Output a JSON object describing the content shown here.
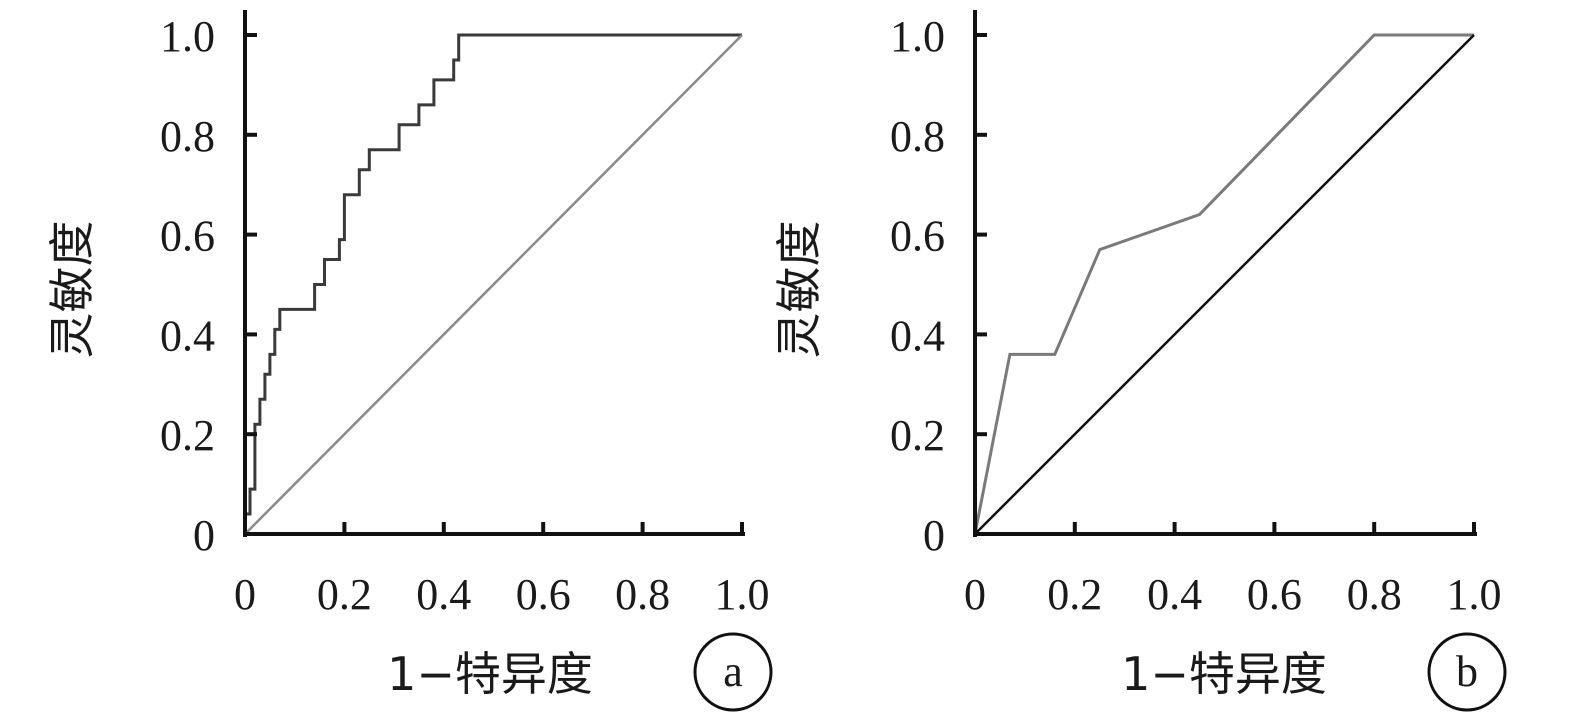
{
  "chart_data": [
    {
      "type": "line",
      "panel_label": "a",
      "xlabel": "1−特异度",
      "ylabel": "灵敏度",
      "xlim": [
        0,
        1
      ],
      "ylim": [
        0,
        1
      ],
      "x_ticks": [
        "0",
        "0.2",
        "0.4",
        "0.6",
        "0.8",
        "1.0"
      ],
      "y_ticks": [
        "0",
        "0.2",
        "0.4",
        "0.6",
        "0.8",
        "1.0"
      ],
      "grid": false,
      "series": [
        {
          "role": "roc-curve",
          "color": "#3a3a3a",
          "x": [
            0,
            0,
            0.01,
            0.01,
            0.02,
            0.02,
            0.03,
            0.03,
            0.04,
            0.04,
            0.05,
            0.05,
            0.06,
            0.06,
            0.07,
            0.07,
            0.14,
            0.14,
            0.16,
            0.16,
            0.19,
            0.19,
            0.2,
            0.2,
            0.23,
            0.23,
            0.25,
            0.25,
            0.31,
            0.31,
            0.35,
            0.35,
            0.38,
            0.38,
            0.42,
            0.42,
            0.43,
            0.43,
            1.0
          ],
          "y": [
            0,
            0.04,
            0.04,
            0.09,
            0.09,
            0.22,
            0.22,
            0.27,
            0.27,
            0.32,
            0.32,
            0.36,
            0.36,
            0.41,
            0.41,
            0.45,
            0.45,
            0.5,
            0.5,
            0.55,
            0.55,
            0.59,
            0.59,
            0.68,
            0.68,
            0.73,
            0.73,
            0.77,
            0.77,
            0.82,
            0.82,
            0.86,
            0.86,
            0.91,
            0.91,
            0.95,
            0.95,
            1.0,
            1.0
          ]
        },
        {
          "role": "reference-diagonal",
          "color": "#8a8a8a",
          "x": [
            0,
            1
          ],
          "y": [
            0,
            1
          ]
        }
      ]
    },
    {
      "type": "line",
      "panel_label": "b",
      "xlabel": "1−特异度",
      "ylabel": "灵敏度",
      "xlim": [
        0,
        1
      ],
      "ylim": [
        0,
        1
      ],
      "x_ticks": [
        "0",
        "0.2",
        "0.4",
        "0.6",
        "0.8",
        "1.0"
      ],
      "y_ticks": [
        "0",
        "0.2",
        "0.4",
        "0.6",
        "0.8",
        "1.0"
      ],
      "grid": false,
      "series": [
        {
          "role": "roc-curve",
          "color": "#7a7a7a",
          "x": [
            0,
            0.07,
            0.16,
            0.25,
            0.45,
            0.8,
            1.0
          ],
          "y": [
            0,
            0.36,
            0.36,
            0.57,
            0.64,
            1.0,
            1.0
          ]
        },
        {
          "role": "reference-diagonal",
          "color": "#111111",
          "x": [
            0,
            1
          ],
          "y": [
            0,
            1
          ]
        }
      ]
    }
  ]
}
